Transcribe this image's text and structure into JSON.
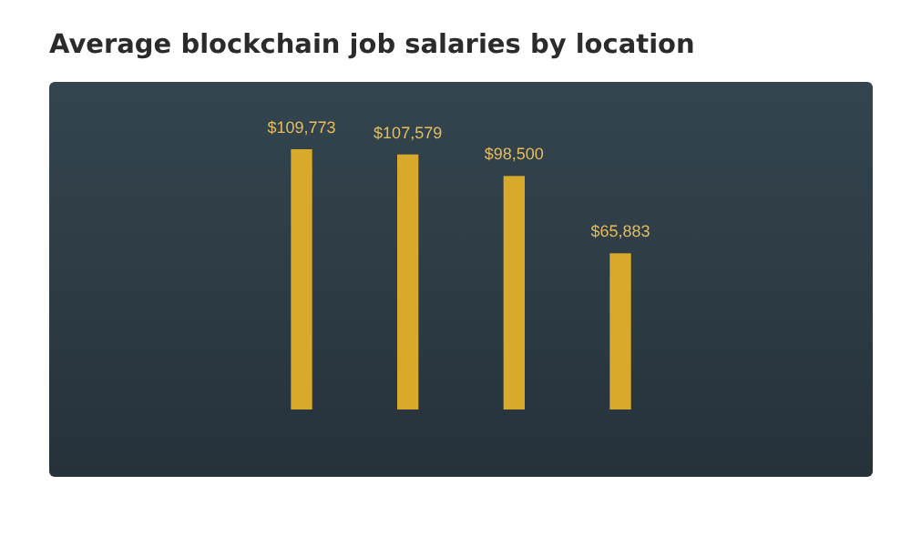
{
  "chart_data": {
    "type": "bar",
    "title": "Average blockchain job salaries by location",
    "categories": [
      null,
      null,
      null,
      null
    ],
    "values": [
      109773,
      107579,
      98500,
      65883
    ],
    "value_labels": [
      "$109,773",
      "$107,579",
      "$98,500",
      "$65,883"
    ],
    "color": "#d9a92c"
  }
}
